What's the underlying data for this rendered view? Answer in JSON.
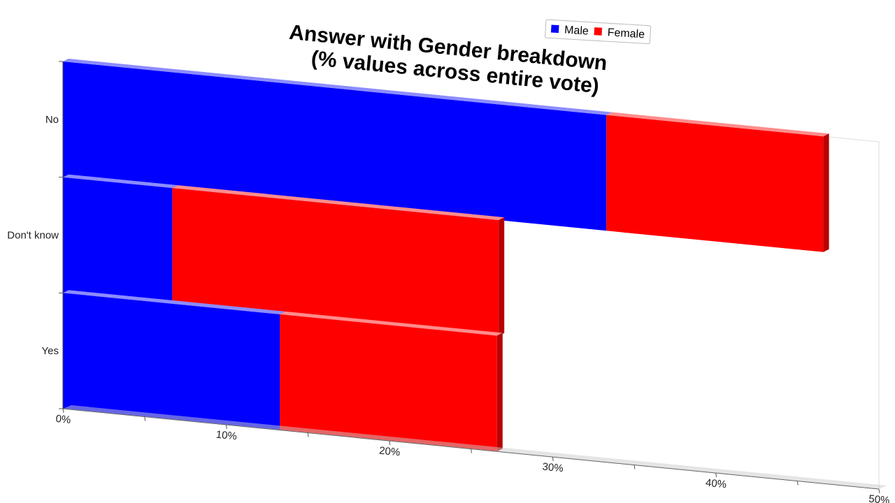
{
  "chart_data": {
    "type": "bar",
    "orientation": "horizontal",
    "stacked": true,
    "title_lines": [
      "Answer with Gender breakdown",
      "(% values across entire vote)"
    ],
    "categories": [
      "No",
      "Don't know",
      "Yes"
    ],
    "series": [
      {
        "name": "Male",
        "color": "#0000ff",
        "values": [
          33.3,
          6.7,
          13.3
        ]
      },
      {
        "name": "Female",
        "color": "#ff0000",
        "values": [
          13.3,
          20.0,
          13.3
        ]
      }
    ],
    "xlim": [
      0,
      50
    ],
    "x_ticks": [
      {
        "value": 0,
        "label": "0%"
      },
      {
        "value": 10,
        "label": "10%"
      },
      {
        "value": 20,
        "label": "20%"
      },
      {
        "value": 30,
        "label": "30%"
      },
      {
        "value": 40,
        "label": "40%"
      },
      {
        "value": 50,
        "label": "50%"
      }
    ],
    "legend_position": "top",
    "grid": false,
    "perspective": "3d-skewed"
  }
}
